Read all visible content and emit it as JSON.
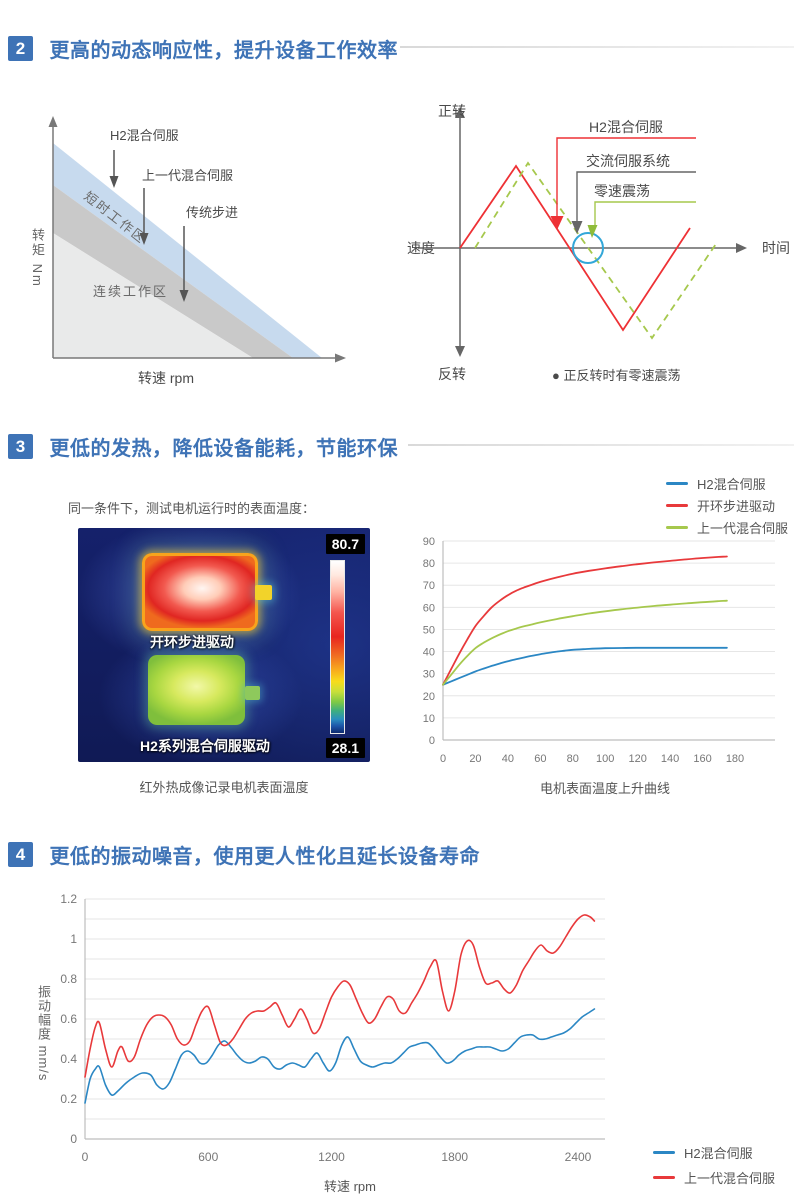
{
  "sections": [
    {
      "num": "2",
      "title": "更高的动态响应性，提升设备工作效率"
    },
    {
      "num": "3",
      "title": "更低的发热，降低设备能耗，节能环保"
    },
    {
      "num": "4",
      "title": "更低的振动噪音，使用更人性化且延长设备寿命"
    }
  ],
  "colors": {
    "accent_blue": "#3e73b6",
    "series_blue": "#2b87c4",
    "series_red": "#e8393b",
    "series_green": "#a6c84d",
    "zero_circle_blue": "#33a7d8",
    "h2_label_red": "#e60012"
  },
  "torque_diagram": {
    "y_axis_label": "转矩 Nm",
    "x_axis_label": "转速 rpm",
    "region_short": "短时工作区",
    "region_continuous": "连续工作区",
    "label_h2": "H2混合伺服",
    "label_prev": "上一代混合伺服",
    "label_step": "传统步进"
  },
  "speed_diagram": {
    "axis_top": "正转",
    "axis_bottom": "反转",
    "axis_left": "速度",
    "axis_right": "时间",
    "label_h2": "H2混合伺服",
    "label_ac": "交流伺服系统",
    "label_zero": "零速震荡",
    "note": "● 正反转时有零速震荡"
  },
  "thermal": {
    "intro": "同一条件下，测试电机运行时的表面温度：",
    "max": "80.7",
    "min": "28.1",
    "top_label": "开环步进驱动",
    "bottom_label": "H2系列混合伺服驱动",
    "caption": "红外热成像记录电机表面温度"
  },
  "chart_data": [
    {
      "type": "line",
      "title": "电机表面温度上升曲线",
      "xlabel": "",
      "ylabel": "",
      "xlim": [
        0,
        180
      ],
      "ylim": [
        0,
        90
      ],
      "x_ticks": [
        0,
        20,
        40,
        60,
        80,
        100,
        120,
        140,
        160,
        180
      ],
      "y_ticks": [
        0,
        10,
        20,
        30,
        40,
        50,
        60,
        70,
        80,
        90
      ],
      "y_grid": 10,
      "grid": "horizontal only",
      "legend_position": "top-right above plot",
      "series": [
        {
          "name": "H2混合伺服",
          "color": "#2b87c4",
          "points": [
            [
              0,
              25
            ],
            [
              5,
              26.5
            ],
            [
              10,
              28
            ],
            [
              15,
              29.5
            ],
            [
              20,
              31
            ],
            [
              25,
              32.3
            ],
            [
              30,
              33.5
            ],
            [
              35,
              34.6
            ],
            [
              40,
              35.6
            ],
            [
              45,
              36.5
            ],
            [
              50,
              37.3
            ],
            [
              55,
              38.1
            ],
            [
              60,
              38.8
            ],
            [
              65,
              39.4
            ],
            [
              70,
              40
            ],
            [
              75,
              40.4
            ],
            [
              80,
              40.8
            ],
            [
              90,
              41.2
            ],
            [
              100,
              41.5
            ],
            [
              110,
              41.6
            ],
            [
              120,
              41.7
            ],
            [
              130,
              41.7
            ],
            [
              140,
              41.7
            ],
            [
              150,
              41.7
            ],
            [
              160,
              41.7
            ],
            [
              175,
              41.7
            ]
          ]
        },
        {
          "name": "开环步进驱动",
          "color": "#e8393b",
          "points": [
            [
              0,
              25
            ],
            [
              5,
              32
            ],
            [
              10,
              39
            ],
            [
              15,
              45.5
            ],
            [
              20,
              51.5
            ],
            [
              25,
              56
            ],
            [
              30,
              60
            ],
            [
              35,
              63
            ],
            [
              40,
              65.5
            ],
            [
              45,
              67.5
            ],
            [
              50,
              69
            ],
            [
              55,
              70.3
            ],
            [
              60,
              71.5
            ],
            [
              70,
              73.5
            ],
            [
              80,
              75.2
            ],
            [
              90,
              76.5
            ],
            [
              100,
              77.6
            ],
            [
              110,
              78.6
            ],
            [
              120,
              79.5
            ],
            [
              130,
              80.3
            ],
            [
              140,
              81
            ],
            [
              150,
              81.7
            ],
            [
              160,
              82.3
            ],
            [
              170,
              82.8
            ],
            [
              175,
              83
            ]
          ]
        },
        {
          "name": "上一代混合伺服",
          "color": "#a6c84d",
          "points": [
            [
              0,
              25
            ],
            [
              5,
              29.5
            ],
            [
              10,
              34
            ],
            [
              15,
              38
            ],
            [
              20,
              41.5
            ],
            [
              25,
              44
            ],
            [
              30,
              46
            ],
            [
              35,
              47.7
            ],
            [
              40,
              49.2
            ],
            [
              45,
              50.4
            ],
            [
              50,
              51.4
            ],
            [
              55,
              52.3
            ],
            [
              60,
              53.2
            ],
            [
              70,
              54.7
            ],
            [
              80,
              56
            ],
            [
              90,
              57.2
            ],
            [
              100,
              58.2
            ],
            [
              110,
              59.1
            ],
            [
              120,
              59.9
            ],
            [
              130,
              60.6
            ],
            [
              140,
              61.2
            ],
            [
              150,
              61.8
            ],
            [
              160,
              62.3
            ],
            [
              170,
              62.8
            ],
            [
              175,
              63
            ]
          ]
        }
      ]
    },
    {
      "type": "line",
      "title": "",
      "xlabel": "转速 rpm",
      "ylabel": "振动幅度 mm/s",
      "xlim": [
        0,
        2400
      ],
      "ylim": [
        0,
        1.2
      ],
      "x_ticks": [
        0,
        600,
        1200,
        1800,
        2400
      ],
      "y_ticks": [
        0,
        0.2,
        0.4,
        0.6,
        0.8,
        1,
        1.2
      ],
      "y_grid": 0.1,
      "grid": "horizontal only",
      "legend_position": "bottom-right outside",
      "series": [
        {
          "name": "H2混合伺服",
          "color": "#2b87c4",
          "points": [
            [
              0,
              0.18
            ],
            [
              25,
              0.3
            ],
            [
              50,
              0.35
            ],
            [
              70,
              0.36
            ],
            [
              100,
              0.27
            ],
            [
              130,
              0.22
            ],
            [
              160,
              0.24
            ],
            [
              200,
              0.28
            ],
            [
              240,
              0.31
            ],
            [
              280,
              0.33
            ],
            [
              320,
              0.32
            ],
            [
              350,
              0.27
            ],
            [
              380,
              0.25
            ],
            [
              410,
              0.28
            ],
            [
              440,
              0.35
            ],
            [
              470,
              0.42
            ],
            [
              500,
              0.44
            ],
            [
              530,
              0.42
            ],
            [
              560,
              0.38
            ],
            [
              590,
              0.38
            ],
            [
              620,
              0.42
            ],
            [
              650,
              0.47
            ],
            [
              680,
              0.49
            ],
            [
              710,
              0.46
            ],
            [
              740,
              0.42
            ],
            [
              770,
              0.39
            ],
            [
              800,
              0.38
            ],
            [
              830,
              0.39
            ],
            [
              860,
              0.41
            ],
            [
              890,
              0.4
            ],
            [
              920,
              0.36
            ],
            [
              950,
              0.35
            ],
            [
              980,
              0.37
            ],
            [
              1010,
              0.38
            ],
            [
              1040,
              0.37
            ],
            [
              1070,
              0.36
            ],
            [
              1100,
              0.4
            ],
            [
              1130,
              0.43
            ],
            [
              1160,
              0.38
            ],
            [
              1190,
              0.34
            ],
            [
              1220,
              0.38
            ],
            [
              1250,
              0.47
            ],
            [
              1280,
              0.51
            ],
            [
              1310,
              0.45
            ],
            [
              1340,
              0.39
            ],
            [
              1370,
              0.37
            ],
            [
              1400,
              0.36
            ],
            [
              1430,
              0.37
            ],
            [
              1460,
              0.38
            ],
            [
              1490,
              0.38
            ],
            [
              1520,
              0.4
            ],
            [
              1550,
              0.43
            ],
            [
              1580,
              0.46
            ],
            [
              1610,
              0.47
            ],
            [
              1640,
              0.48
            ],
            [
              1670,
              0.48
            ],
            [
              1700,
              0.45
            ],
            [
              1730,
              0.41
            ],
            [
              1760,
              0.38
            ],
            [
              1790,
              0.39
            ],
            [
              1820,
              0.42
            ],
            [
              1850,
              0.44
            ],
            [
              1880,
              0.45
            ],
            [
              1910,
              0.46
            ],
            [
              1940,
              0.46
            ],
            [
              1970,
              0.46
            ],
            [
              2000,
              0.45
            ],
            [
              2030,
              0.44
            ],
            [
              2060,
              0.45
            ],
            [
              2090,
              0.48
            ],
            [
              2120,
              0.51
            ],
            [
              2150,
              0.52
            ],
            [
              2180,
              0.52
            ],
            [
              2210,
              0.5
            ],
            [
              2240,
              0.5
            ],
            [
              2270,
              0.51
            ],
            [
              2300,
              0.52
            ],
            [
              2330,
              0.53
            ],
            [
              2360,
              0.55
            ],
            [
              2390,
              0.58
            ],
            [
              2420,
              0.61
            ],
            [
              2450,
              0.63
            ],
            [
              2480,
              0.65
            ]
          ]
        },
        {
          "name": "上一代混合伺服",
          "color": "#e8393b",
          "points": [
            [
              0,
              0.31
            ],
            [
              25,
              0.45
            ],
            [
              50,
              0.56
            ],
            [
              70,
              0.58
            ],
            [
              100,
              0.45
            ],
            [
              130,
              0.36
            ],
            [
              160,
              0.44
            ],
            [
              180,
              0.46
            ],
            [
              210,
              0.39
            ],
            [
              240,
              0.41
            ],
            [
              270,
              0.5
            ],
            [
              300,
              0.57
            ],
            [
              330,
              0.61
            ],
            [
              360,
              0.62
            ],
            [
              390,
              0.61
            ],
            [
              420,
              0.57
            ],
            [
              450,
              0.5
            ],
            [
              480,
              0.47
            ],
            [
              510,
              0.49
            ],
            [
              540,
              0.57
            ],
            [
              570,
              0.64
            ],
            [
              600,
              0.66
            ],
            [
              630,
              0.57
            ],
            [
              660,
              0.48
            ],
            [
              690,
              0.47
            ],
            [
              720,
              0.5
            ],
            [
              750,
              0.55
            ],
            [
              780,
              0.6
            ],
            [
              810,
              0.63
            ],
            [
              840,
              0.64
            ],
            [
              870,
              0.64
            ],
            [
              900,
              0.66
            ],
            [
              930,
              0.68
            ],
            [
              960,
              0.62
            ],
            [
              990,
              0.56
            ],
            [
              1020,
              0.6
            ],
            [
              1050,
              0.65
            ],
            [
              1080,
              0.6
            ],
            [
              1110,
              0.53
            ],
            [
              1140,
              0.55
            ],
            [
              1170,
              0.63
            ],
            [
              1200,
              0.71
            ],
            [
              1230,
              0.76
            ],
            [
              1260,
              0.79
            ],
            [
              1290,
              0.77
            ],
            [
              1320,
              0.7
            ],
            [
              1350,
              0.63
            ],
            [
              1380,
              0.58
            ],
            [
              1410,
              0.6
            ],
            [
              1440,
              0.66
            ],
            [
              1470,
              0.71
            ],
            [
              1500,
              0.7
            ],
            [
              1530,
              0.64
            ],
            [
              1560,
              0.63
            ],
            [
              1590,
              0.68
            ],
            [
              1620,
              0.73
            ],
            [
              1650,
              0.79
            ],
            [
              1680,
              0.86
            ],
            [
              1710,
              0.89
            ],
            [
              1740,
              0.74
            ],
            [
              1770,
              0.64
            ],
            [
              1800,
              0.74
            ],
            [
              1830,
              0.92
            ],
            [
              1860,
              0.99
            ],
            [
              1890,
              0.97
            ],
            [
              1920,
              0.86
            ],
            [
              1950,
              0.78
            ],
            [
              1980,
              0.78
            ],
            [
              2010,
              0.79
            ],
            [
              2040,
              0.75
            ],
            [
              2070,
              0.73
            ],
            [
              2100,
              0.77
            ],
            [
              2130,
              0.84
            ],
            [
              2160,
              0.89
            ],
            [
              2190,
              0.94
            ],
            [
              2220,
              0.97
            ],
            [
              2250,
              0.94
            ],
            [
              2280,
              0.93
            ],
            [
              2310,
              0.96
            ],
            [
              2340,
              1.01
            ],
            [
              2370,
              1.06
            ],
            [
              2400,
              1.1
            ],
            [
              2430,
              1.12
            ],
            [
              2460,
              1.11
            ],
            [
              2480,
              1.09
            ]
          ]
        }
      ]
    }
  ]
}
